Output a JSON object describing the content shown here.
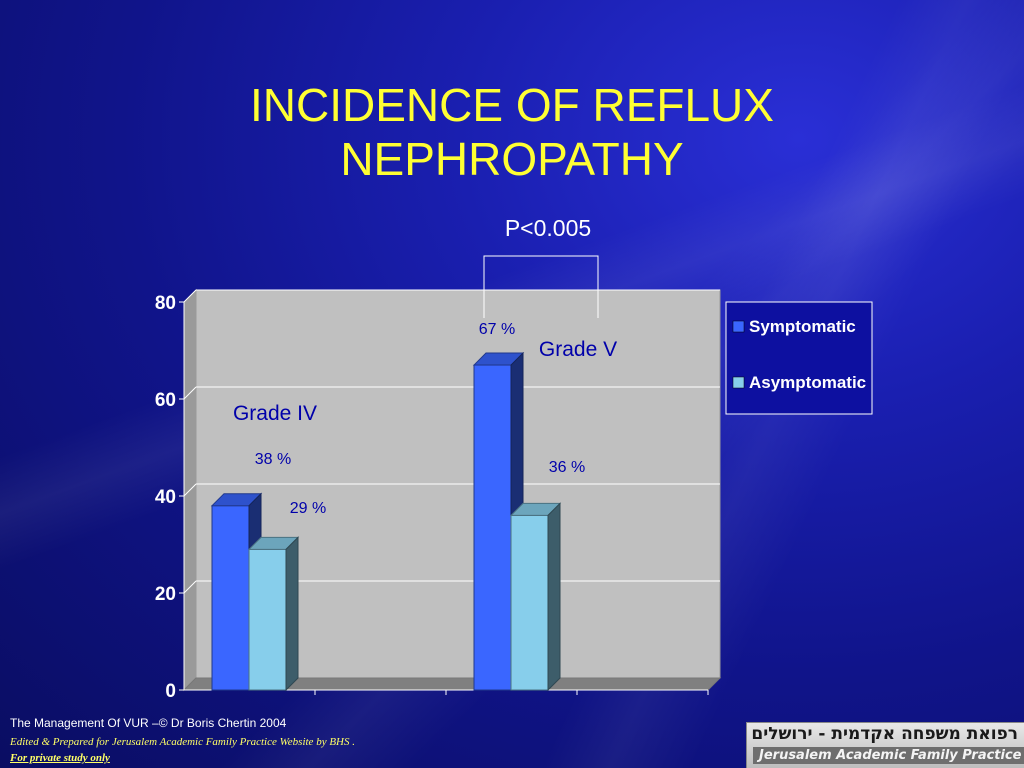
{
  "slide": {
    "title_line1": "INCIDENCE OF REFLUX",
    "title_line2": "NEPHROPATHY",
    "footer_line1": "The Management Of VUR –© Dr Boris Chertin 2004",
    "footer_line2": "Edited & Prepared for Jerusalem Academic Family Practice Website by BHS .",
    "footer_line3": "For private study only",
    "logo_hebrew": "רפואת משפחה אקדמית - ירושלים",
    "logo_english": "Jerusalem Academic Family Practice"
  },
  "chart_data": {
    "type": "bar",
    "categories": [
      "Grade IV",
      "Grade V"
    ],
    "series": [
      {
        "name": "Symptomatic",
        "values": [
          38,
          67
        ],
        "labels": [
          "38 %",
          "67 %"
        ],
        "color": "#3a66ff"
      },
      {
        "name": "Asymptomatic",
        "values": [
          29,
          36
        ],
        "labels": [
          "29 %",
          "36 %"
        ],
        "color": "#87ceeb"
      }
    ],
    "ylim": [
      0,
      80
    ],
    "yticks": [
      0,
      20,
      40,
      60,
      80
    ],
    "grid": true,
    "legend": "right",
    "annotation": "P<0.005",
    "plot_background": "#c0c0c0",
    "label_color": "#0000aa"
  }
}
